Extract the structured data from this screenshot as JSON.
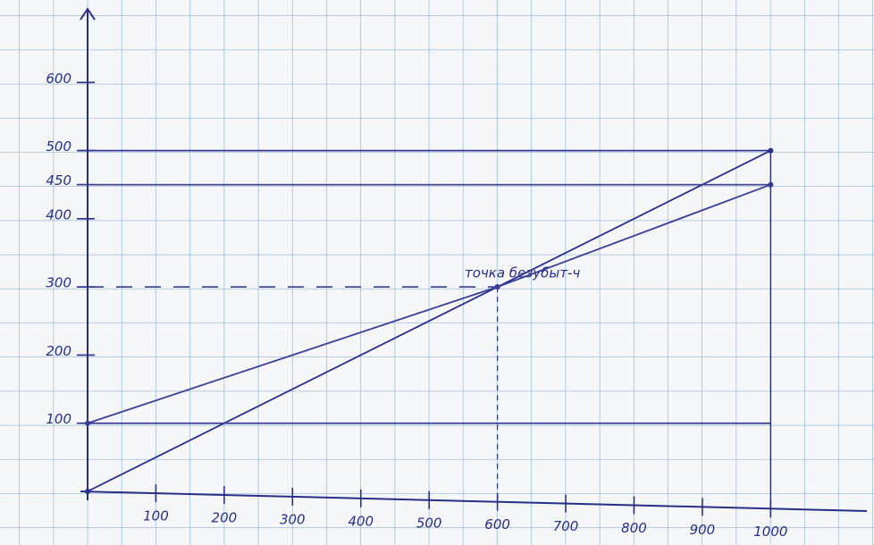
{
  "chart_data": {
    "type": "line",
    "annotation": "точка безубыт-ч",
    "series": [
      {
        "color": "#2b2e8c",
        "x": [
          0,
          600,
          1000
        ],
        "values": [
          0,
          300,
          500
        ]
      },
      {
        "color": "#3a3d95",
        "x": [
          0,
          600,
          1000
        ],
        "values": [
          100,
          300,
          450
        ]
      },
      {
        "color": "#3a3d95",
        "x": [
          0,
          1000
        ],
        "values": [
          100,
          100
        ]
      }
    ],
    "xlim": [
      0,
      1150
    ],
    "ylim": [
      0,
      700
    ],
    "xticks": [
      100,
      200,
      300,
      400,
      500,
      600,
      700,
      800,
      900,
      1000
    ],
    "yticks": [
      100,
      200,
      300,
      400,
      450,
      500,
      600
    ]
  }
}
